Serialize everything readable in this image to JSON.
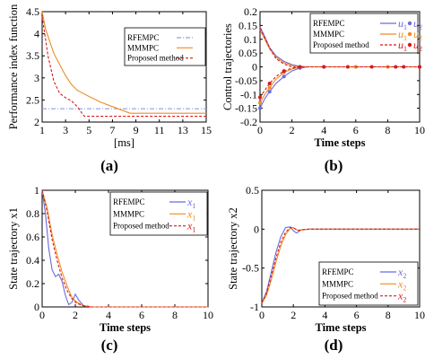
{
  "colors": {
    "rfempc": "#6b6bdc",
    "mmmpc": "#f08c1e",
    "proposed": "#d7191c",
    "hline_rfempc": "#8da0e8",
    "hline_mmmpc": "#f08c1e"
  },
  "chart_data": [
    {
      "panel": "(a)",
      "type": "line",
      "xlabel": "[ms]",
      "ylabel": "Performance index function",
      "xlim": [
        1,
        15
      ],
      "ylim": [
        2,
        4.5
      ],
      "xticks": [
        "1",
        "3",
        "5",
        "7",
        "9",
        "11",
        "13",
        "15"
      ],
      "yticks": [
        "2",
        "2.5",
        "3",
        "3.5",
        "4",
        "4.5"
      ],
      "legend": {
        "placement": "top-right",
        "entries": [
          "RFEMPC",
          "MMMPC",
          "Proposed method"
        ]
      },
      "series": [
        {
          "name": "RFEMPC",
          "style": "dash-dot",
          "color": "hline_rfempc",
          "x": [
            1,
            15
          ],
          "y": [
            2.3,
            2.3
          ]
        },
        {
          "name": "MMMPC",
          "style": "solid",
          "color": "mmmpc",
          "x": [
            1,
            1.3,
            2,
            2.5,
            3,
            3.5,
            4,
            5,
            6,
            7,
            8,
            8.5,
            9,
            11,
            13,
            15
          ],
          "y": [
            4.5,
            4.1,
            3.55,
            3.3,
            3.05,
            2.85,
            2.72,
            2.58,
            2.45,
            2.35,
            2.25,
            2.2,
            2.2,
            2.2,
            2.2,
            2.2
          ]
        },
        {
          "name": "Proposed method",
          "style": "dashed",
          "color": "proposed",
          "x": [
            1,
            1.5,
            2,
            2.5,
            3,
            3.5,
            4,
            4.4,
            4.6,
            5,
            7,
            9,
            11,
            13,
            15
          ],
          "y": [
            4.4,
            3.5,
            2.92,
            2.65,
            2.55,
            2.48,
            2.35,
            2.2,
            2.13,
            2.13,
            2.13,
            2.13,
            2.13,
            2.13,
            2.13
          ]
        }
      ]
    },
    {
      "panel": "(b)",
      "type": "line",
      "xlabel": "Time steps",
      "ylabel": "Control trajectories",
      "xlim": [
        0,
        10
      ],
      "ylim": [
        -0.2,
        0.2
      ],
      "xticks": [
        "0",
        "2",
        "4",
        "6",
        "8",
        "10"
      ],
      "yticks": [
        "-0.2",
        "-0.15",
        "-0.1",
        "-0.05",
        "0",
        "0.05",
        "0.1",
        "0.15",
        "0.2"
      ],
      "legend": {
        "placement": "top-right",
        "entries": [
          "RFEMPC",
          "MMMPC",
          "Proposed method"
        ],
        "symbols": [
          "u",
          "u"
        ],
        "subs": [
          "1",
          "2"
        ]
      },
      "series": [
        {
          "name": "RFEMPC u1",
          "color": "rfempc",
          "style": "solid",
          "x": [
            0,
            0.3,
            0.6,
            1,
            1.5,
            2,
            2.5,
            3,
            4,
            6,
            8,
            10
          ],
          "y": [
            0.145,
            0.11,
            0.07,
            0.04,
            0.02,
            0.008,
            0.002,
            0,
            0,
            0,
            0,
            0
          ]
        },
        {
          "name": "RFEMPC u2",
          "color": "rfempc",
          "style": "solid",
          "marker": "dot",
          "x": [
            0,
            0.3,
            0.6,
            1,
            1.5,
            2,
            2.5,
            3,
            4,
            6,
            8,
            10
          ],
          "y": [
            -0.15,
            -0.115,
            -0.09,
            -0.06,
            -0.035,
            -0.015,
            -0.004,
            0,
            0,
            0,
            0,
            0
          ]
        },
        {
          "name": "MMMPC u1",
          "color": "mmmpc",
          "style": "solid",
          "x": [
            0,
            0.3,
            0.6,
            1,
            1.5,
            2,
            2.5,
            3,
            4,
            6,
            8,
            10
          ],
          "y": [
            0.135,
            0.1,
            0.065,
            0.035,
            0.015,
            0.005,
            0,
            0,
            0,
            0,
            0,
            0
          ]
        },
        {
          "name": "MMMPC u2",
          "color": "mmmpc",
          "style": "solid",
          "marker": "dot",
          "x": [
            0,
            0.3,
            0.6,
            1,
            1.5,
            2,
            2.5,
            3,
            4,
            6,
            8,
            10
          ],
          "y": [
            -0.13,
            -0.1,
            -0.075,
            -0.045,
            -0.02,
            -0.008,
            0,
            0,
            0,
            0,
            0,
            0
          ]
        },
        {
          "name": "Proposed u1",
          "color": "proposed",
          "style": "dashed",
          "x": [
            0,
            0.3,
            0.6,
            1,
            1.5,
            2,
            2.5,
            3,
            4,
            6,
            8,
            10
          ],
          "y": [
            0.14,
            0.105,
            0.068,
            0.03,
            0.01,
            0,
            -0.003,
            0,
            0,
            0,
            0,
            0
          ]
        },
        {
          "name": "Proposed u2",
          "color": "proposed",
          "style": "dashed",
          "marker": "dot",
          "x": [
            0,
            0.3,
            0.6,
            1,
            1.5,
            2,
            2.5,
            3,
            4,
            5.5,
            7,
            8.5,
            9,
            10
          ],
          "y": [
            -0.11,
            -0.085,
            -0.06,
            -0.035,
            -0.015,
            -0.005,
            0,
            0,
            0,
            0,
            0,
            0,
            0,
            0
          ]
        }
      ]
    },
    {
      "panel": "(c)",
      "type": "line",
      "xlabel": "Time steps",
      "ylabel": "State trajectory x1",
      "xlim": [
        0,
        10
      ],
      "ylim": [
        0,
        1
      ],
      "xticks": [
        "0",
        "2",
        "4",
        "6",
        "8",
        "10"
      ],
      "yticks": [
        "0",
        "0.2",
        "0.4",
        "0.6",
        "0.8",
        "1"
      ],
      "legend": {
        "placement": "top-right",
        "entries": [
          "RFEMPC",
          "MMMPC",
          "Proposed method"
        ],
        "symbol": "x",
        "sub": "1"
      },
      "series": [
        {
          "name": "RFEMPC",
          "color": "rfempc",
          "style": "solid",
          "x": [
            0,
            0.2,
            0.4,
            0.6,
            0.8,
            1.0,
            1.2,
            1.4,
            1.6,
            1.8,
            2.0,
            2.2,
            2.5,
            3,
            4,
            10
          ],
          "y": [
            1.0,
            0.8,
            0.5,
            0.32,
            0.26,
            0.28,
            0.22,
            0.1,
            0.02,
            0.04,
            0.11,
            0.06,
            0.01,
            0,
            0,
            0
          ]
        },
        {
          "name": "MMMPC",
          "color": "mmmpc",
          "style": "solid",
          "x": [
            0,
            0.3,
            0.6,
            0.9,
            1.2,
            1.5,
            1.8,
            2.1,
            2.5,
            3,
            4,
            10
          ],
          "y": [
            1.0,
            0.85,
            0.62,
            0.45,
            0.3,
            0.18,
            0.08,
            0.04,
            0.01,
            0,
            0,
            0
          ]
        },
        {
          "name": "Proposed method",
          "color": "proposed",
          "style": "dashed",
          "x": [
            0,
            0.3,
            0.6,
            0.9,
            1.2,
            1.5,
            1.8,
            2.1,
            2.5,
            3,
            4,
            10
          ],
          "y": [
            1.0,
            0.82,
            0.58,
            0.4,
            0.25,
            0.14,
            0.07,
            0.03,
            0.01,
            0,
            0,
            0
          ]
        }
      ]
    },
    {
      "panel": "(d)",
      "type": "line",
      "xlabel": "Time steps",
      "ylabel": "State trajectory x2",
      "xlim": [
        0,
        10
      ],
      "ylim": [
        -1,
        0.5
      ],
      "xticks": [
        "0",
        "2",
        "4",
        "6",
        "8",
        "10"
      ],
      "yticks": [
        "-1",
        "-0.5",
        "0",
        "0.5"
      ],
      "legend": {
        "placement": "bottom-right",
        "entries": [
          "RFEMPC",
          "MMMPC",
          "Proposed method"
        ],
        "symbol": "x",
        "sub": "2"
      },
      "series": [
        {
          "name": "RFEMPC",
          "color": "rfempc",
          "style": "solid",
          "x": [
            0,
            0.3,
            0.6,
            0.9,
            1.2,
            1.5,
            1.8,
            2.0,
            2.2,
            2.5,
            3,
            4,
            10
          ],
          "y": [
            -0.95,
            -0.8,
            -0.55,
            -0.3,
            -0.1,
            0.02,
            0.03,
            -0.02,
            -0.05,
            -0.01,
            0,
            0,
            0
          ]
        },
        {
          "name": "MMMPC",
          "color": "mmmpc",
          "style": "solid",
          "x": [
            0,
            0.3,
            0.6,
            0.9,
            1.2,
            1.5,
            1.8,
            2.0,
            2.3,
            2.6,
            3,
            4,
            10
          ],
          "y": [
            -0.95,
            -0.85,
            -0.65,
            -0.42,
            -0.22,
            -0.07,
            0.01,
            0.02,
            -0.02,
            -0.01,
            0,
            0,
            0
          ]
        },
        {
          "name": "Proposed method",
          "color": "proposed",
          "style": "dashed",
          "x": [
            0,
            0.3,
            0.6,
            0.9,
            1.2,
            1.5,
            1.8,
            2.0,
            2.3,
            2.6,
            3,
            4,
            10
          ],
          "y": [
            -0.95,
            -0.82,
            -0.6,
            -0.37,
            -0.17,
            -0.04,
            0.02,
            0.015,
            -0.015,
            -0.005,
            0,
            0,
            0
          ]
        }
      ]
    }
  ],
  "panel_labels": [
    "(a)",
    "(b)",
    "(c)",
    "(d)"
  ]
}
